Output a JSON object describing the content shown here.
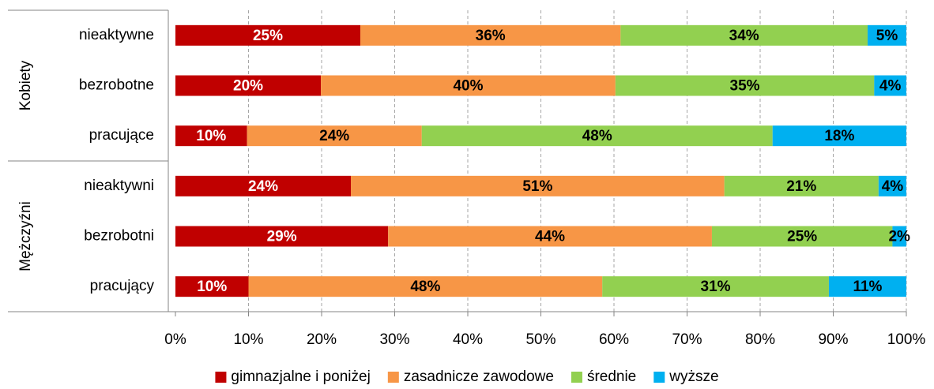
{
  "chart_data": {
    "type": "bar",
    "orientation": "horizontal",
    "stacked": true,
    "groups": [
      {
        "label": "Kobiety",
        "categories": [
          "nieaktywne",
          "bezrobotne",
          "pracujące"
        ]
      },
      {
        "label": "Mężczyźni",
        "categories": [
          "nieaktywni",
          "bezrobotni",
          "pracujący"
        ]
      }
    ],
    "series": [
      {
        "name": "gimnazjalne i poniżej",
        "color": "#c00000",
        "label_color": "#ffffff",
        "values": [
          25.3,
          19.9,
          9.8,
          24.0,
          29.1,
          10.0
        ],
        "value_labels": [
          "25%",
          "20%",
          "10%",
          "24%",
          "29%",
          "10%"
        ]
      },
      {
        "name": "zasadnicze zawodowe",
        "color": "#f79646",
        "label_color": "#000000",
        "values": [
          35.6,
          40.3,
          23.9,
          51.1,
          44.3,
          48.4
        ],
        "value_labels": [
          "36%",
          "40%",
          "24%",
          "51%",
          "44%",
          "48%"
        ]
      },
      {
        "name": "średnie",
        "color": "#92d050",
        "label_color": "#000000",
        "values": [
          33.8,
          35.4,
          48.0,
          21.1,
          24.7,
          31.0
        ],
        "value_labels": [
          "34%",
          "35%",
          "48%",
          "21%",
          "25%",
          "31%"
        ]
      },
      {
        "name": "wyższe",
        "color": "#00b0f0",
        "label_color": "#000000",
        "values": [
          5.3,
          4.4,
          18.3,
          3.8,
          1.9,
          10.6
        ],
        "value_labels": [
          "5%",
          "4%",
          "18%",
          "4%",
          "2%",
          "11%"
        ]
      }
    ],
    "xlim": [
      0,
      100
    ],
    "xticks": [
      {
        "value": 0,
        "label": "0%"
      },
      {
        "value": 10,
        "label": "10%"
      },
      {
        "value": 20,
        "label": "20%"
      },
      {
        "value": 30,
        "label": "30%"
      },
      {
        "value": 40,
        "label": "40%"
      },
      {
        "value": 50,
        "label": "50%"
      },
      {
        "value": 60,
        "label": "60%"
      },
      {
        "value": 70,
        "label": "70%"
      },
      {
        "value": 80,
        "label": "80%"
      },
      {
        "value": 90,
        "label": "90%"
      },
      {
        "value": 100,
        "label": "100%"
      }
    ],
    "grid": true,
    "legend": "bottom"
  }
}
